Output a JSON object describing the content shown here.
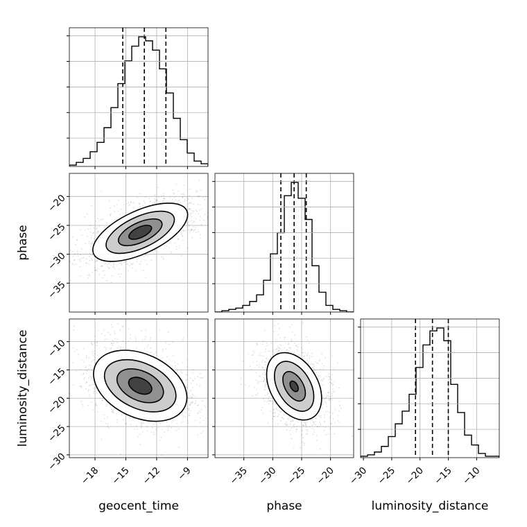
{
  "chart_data": {
    "type": "corner",
    "parameters": [
      "geocent_time",
      "phase",
      "luminosity_distance"
    ],
    "grid": true,
    "quantile_lines": {
      "geocent_time": [
        -15.3,
        -13.2,
        -11.1
      ],
      "phase": [
        -28.6,
        -26.3,
        -24.2
      ],
      "luminosity_distance": [
        -20.8,
        -17.8,
        -15.0
      ]
    },
    "ranges": {
      "geocent_time": [
        -20.5,
        -7.0
      ],
      "phase": [
        -40.0,
        -16.0
      ],
      "luminosity_distance": [
        -30.5,
        -6.0
      ]
    },
    "ticks": {
      "geocent_time": {
        "values": [
          -18,
          -15,
          -12,
          -9
        ],
        "labels": [
          "−18",
          "−15",
          "−12",
          "−9"
        ]
      },
      "phase": {
        "values": [
          -35,
          -30,
          -25,
          -20
        ],
        "labels": [
          "−35",
          "−30",
          "−25",
          "−20"
        ]
      },
      "luminosity_distance": {
        "values": [
          -30,
          -25,
          -20,
          -15,
          -10
        ],
        "labels": [
          "−30",
          "−25",
          "−20",
          "−15",
          "−10"
        ]
      }
    },
    "histograms": {
      "geocent_time": {
        "edges": [
          -20.5,
          -19.825,
          -19.15,
          -18.475,
          -17.8,
          -17.125,
          -16.45,
          -15.775,
          -15.1,
          -14.425,
          -13.75,
          -13.075,
          -12.4,
          -11.725,
          -11.05,
          -10.375,
          -9.7,
          -9.025,
          -8.35,
          -7.675,
          -7.0
        ],
        "counts": [
          1,
          3,
          6,
          11,
          18,
          29,
          44,
          62,
          79,
          90,
          97,
          94,
          87,
          73,
          55,
          36,
          20,
          10,
          4,
          2
        ]
      },
      "phase": {
        "edges": [
          -40.0,
          -38.8,
          -37.6,
          -36.4,
          -35.2,
          -34.0,
          -32.8,
          -31.6,
          -30.4,
          -29.2,
          -28.0,
          -26.8,
          -25.6,
          -24.4,
          -23.2,
          -22.0,
          -20.8,
          -19.6,
          -18.4,
          -17.2,
          -16.0
        ],
        "counts": [
          0,
          1,
          2,
          3,
          5,
          8,
          13,
          24,
          44,
          60,
          88,
          98,
          86,
          70,
          35,
          15,
          5,
          2,
          1,
          0
        ]
      },
      "luminosity_distance": {
        "edges": [
          -30.5,
          -29.275,
          -28.05,
          -26.825,
          -25.6,
          -24.375,
          -23.15,
          -21.925,
          -20.7,
          -19.475,
          -18.25,
          -17.025,
          -15.8,
          -14.575,
          -13.35,
          -12.125,
          -10.9,
          -9.675,
          -8.45,
          -7.225,
          -6.0
        ],
        "counts": [
          1,
          2,
          4,
          8,
          15,
          24,
          33,
          45,
          64,
          80,
          90,
          92,
          83,
          52,
          32,
          16,
          9,
          3,
          1,
          1
        ]
      }
    },
    "contours_2d": {
      "phase_vs_geocent_time": {
        "center": [
          -13.6,
          -26.2
        ],
        "rotation_deg": 25,
        "radii": [
          [
            1.2,
            0.9
          ],
          [
            2.3,
            1.7
          ],
          [
            3.6,
            2.7
          ],
          [
            5.0,
            3.7
          ]
        ]
      },
      "luminosity_distance_vs_geocent_time": {
        "center": [
          -13.6,
          -17.8
        ],
        "rotation_deg": -25,
        "radii": [
          [
            1.2,
            1.3
          ],
          [
            2.4,
            2.6
          ],
          [
            3.7,
            4.0
          ],
          [
            4.8,
            5.6
          ]
        ]
      },
      "luminosity_distance_vs_phase": {
        "center": [
          -26.3,
          -17.9
        ],
        "rotation_deg": -60,
        "radii": [
          [
            1.0,
            0.6
          ],
          [
            2.8,
            1.6
          ],
          [
            4.7,
            2.9
          ],
          [
            6.3,
            4.2
          ]
        ]
      }
    }
  }
}
